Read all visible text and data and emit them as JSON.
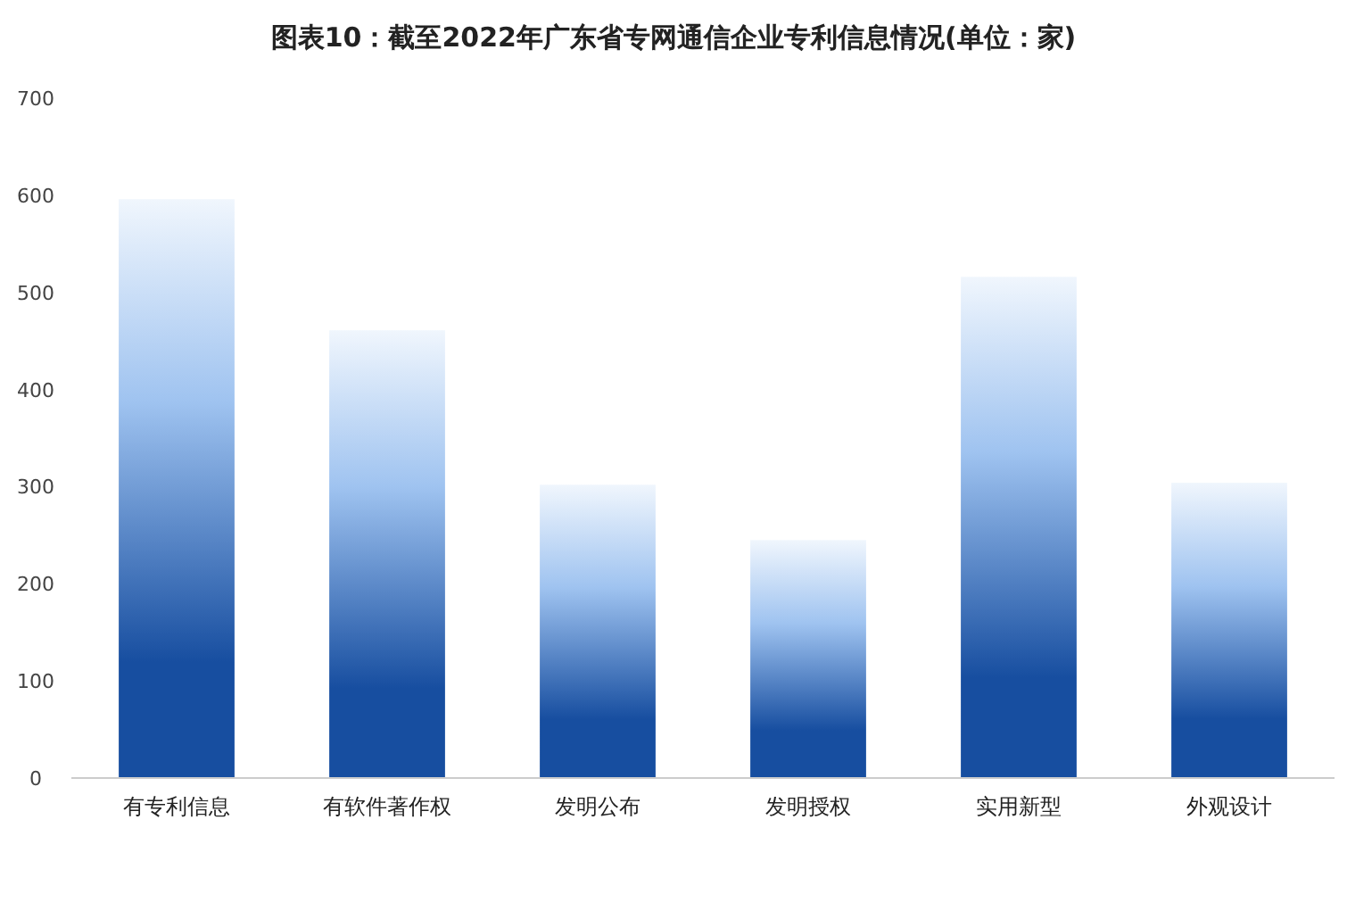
{
  "chart_data": {
    "type": "bar",
    "title": "图表10：截至2022年广东省专网通信企业专利信息情况(单位：家)",
    "categories": [
      "有专利信息",
      "有软件著作权",
      "发明公布",
      "发明授权",
      "实用新型",
      "外观设计"
    ],
    "values": [
      596,
      461,
      302,
      245,
      516,
      304
    ],
    "color": "#174ea0",
    "ylim": [
      0,
      700
    ],
    "yticks": [
      0,
      100,
      200,
      300,
      400,
      500,
      600,
      700
    ],
    "grid": false
  }
}
